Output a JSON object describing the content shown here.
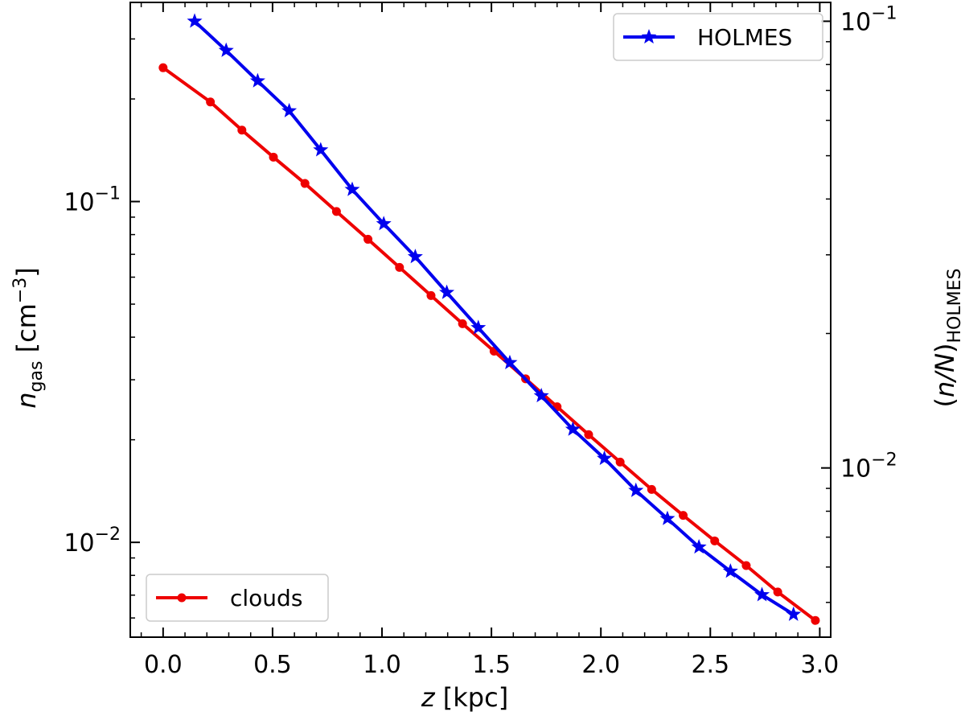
{
  "chart_data": {
    "type": "line",
    "xlabel": {
      "var": "z",
      "unit": " [kpc]"
    },
    "ylabel_left": {
      "var": "n",
      "sub": "gas",
      "unit": " [cm",
      "sup": "−3",
      "close": "]"
    },
    "ylabel_right": {
      "open": "(",
      "var": "n/N",
      "close": ")",
      "sub": "HOLMES"
    },
    "xlim": [
      -0.15,
      3.05
    ],
    "xticks": [
      0.0,
      0.5,
      1.0,
      1.5,
      2.0,
      2.5,
      3.0
    ],
    "xtick_labels": [
      "0.0",
      "0.5",
      "1.0",
      "1.5",
      "2.0",
      "2.5",
      "3.0"
    ],
    "y_left": {
      "scale": "log",
      "lim": [
        0.00527,
        0.384
      ],
      "major_ticks": [
        0.01,
        0.1
      ],
      "major_labels": [
        {
          "base": "10",
          "exp": "−2"
        },
        {
          "base": "10",
          "exp": "−1"
        }
      ]
    },
    "y_right": {
      "scale": "log",
      "lim": [
        0.00418,
        0.1102
      ],
      "major_ticks": [
        0.01,
        0.1
      ],
      "major_labels": [
        {
          "base": "10",
          "exp": "−2"
        },
        {
          "base": "10",
          "exp": "−1"
        }
      ]
    },
    "series": [
      {
        "name": "clouds",
        "axis": "left",
        "color": "#ee0000",
        "marker": "circle",
        "legend_position": "lower-left",
        "x": [
          0.0,
          0.216,
          0.36,
          0.504,
          0.648,
          0.792,
          0.936,
          1.08,
          1.224,
          1.368,
          1.512,
          1.656,
          1.8,
          1.944,
          2.088,
          2.232,
          2.376,
          2.52,
          2.664,
          2.808,
          2.98
        ],
        "y": [
          0.247,
          0.196,
          0.162,
          0.135,
          0.113,
          0.0935,
          0.0775,
          0.0641,
          0.053,
          0.0438,
          0.0364,
          0.0302,
          0.025,
          0.0207,
          0.0172,
          0.0143,
          0.012,
          0.0101,
          0.00855,
          0.00715,
          0.0059
        ]
      },
      {
        "name": "HOLMES",
        "axis": "right",
        "color": "#0000ee",
        "marker": "star",
        "legend_position": "upper-right",
        "x": [
          0.144,
          0.288,
          0.432,
          0.576,
          0.72,
          0.864,
          1.008,
          1.152,
          1.296,
          1.44,
          1.584,
          1.728,
          1.872,
          2.016,
          2.16,
          2.304,
          2.448,
          2.592,
          2.736,
          2.88
        ],
        "y": [
          0.1,
          0.086,
          0.0735,
          0.063,
          0.0515,
          0.042,
          0.0352,
          0.0297,
          0.0247,
          0.0206,
          0.0172,
          0.0145,
          0.0122,
          0.0105,
          0.0089,
          0.0077,
          0.00665,
          0.00587,
          0.0052,
          0.0047
        ]
      }
    ],
    "grid": false
  },
  "colors": {
    "axis": "#000000",
    "legend_border": "#cccccc"
  }
}
